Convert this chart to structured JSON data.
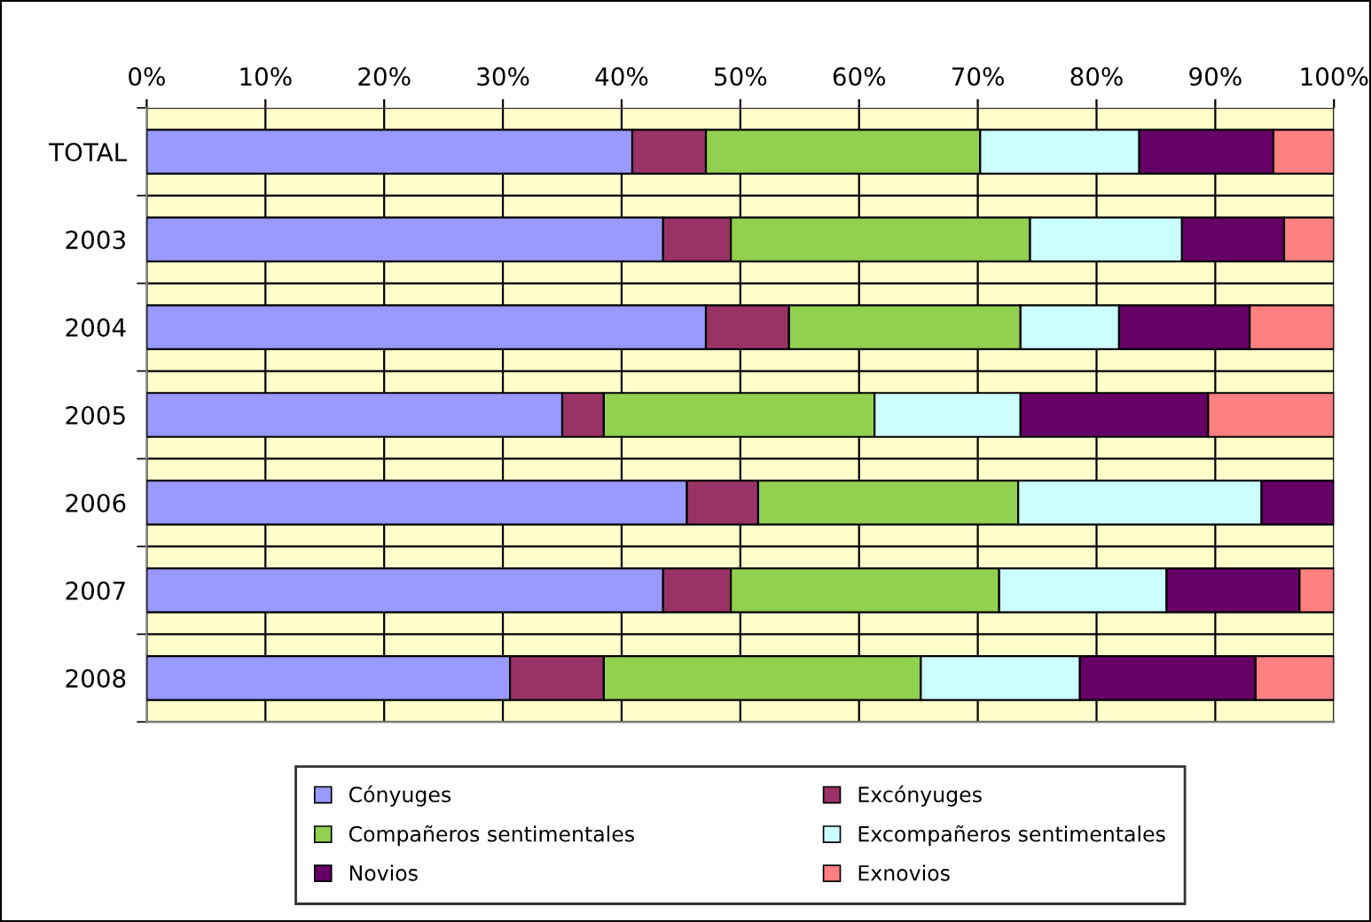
{
  "chart_data": {
    "type": "bar",
    "orientation": "horizontal",
    "stacked": true,
    "categories": [
      "TOTAL",
      "2003",
      "2004",
      "2005",
      "2006",
      "2007",
      "2008"
    ],
    "series": [
      {
        "name": "Cónyuges",
        "color": "#9999ff",
        "values": [
          40.9,
          43.5,
          47.1,
          35.0,
          45.5,
          43.5,
          30.6
        ]
      },
      {
        "name": "Excónyuges",
        "color": "#993366",
        "values": [
          6.2,
          5.7,
          7.0,
          3.5,
          6.0,
          5.7,
          7.9
        ]
      },
      {
        "name": "Compañeros sentimentales",
        "color": "#92d050",
        "values": [
          23.1,
          25.2,
          19.5,
          22.8,
          21.9,
          22.6,
          26.7
        ]
      },
      {
        "name": "Excompañeros sentimentales",
        "color": "#ccffff",
        "values": [
          13.4,
          12.8,
          8.3,
          12.3,
          20.5,
          14.1,
          13.4
        ]
      },
      {
        "name": "Novios",
        "color": "#660066",
        "values": [
          11.3,
          8.6,
          11.0,
          15.8,
          6.1,
          11.2,
          14.8
        ]
      },
      {
        "name": "Exnovios",
        "color": "#ff8080",
        "values": [
          5.1,
          4.2,
          7.1,
          10.6,
          null,
          2.9,
          6.6
        ]
      }
    ],
    "xlim": [
      0,
      100
    ],
    "xticks": [
      {
        "value": 0,
        "label": "0%"
      },
      {
        "value": 10,
        "label": "10%"
      },
      {
        "value": 20,
        "label": "20%"
      },
      {
        "value": 30,
        "label": "30%"
      },
      {
        "value": 40,
        "label": "40%"
      },
      {
        "value": 50,
        "label": "50%"
      },
      {
        "value": 60,
        "label": "60%"
      },
      {
        "value": 70,
        "label": "70%"
      },
      {
        "value": 80,
        "label": "80%"
      },
      {
        "value": 90,
        "label": "90%"
      },
      {
        "value": 100,
        "label": "100%"
      }
    ],
    "grid": true,
    "legend": "bottom"
  }
}
